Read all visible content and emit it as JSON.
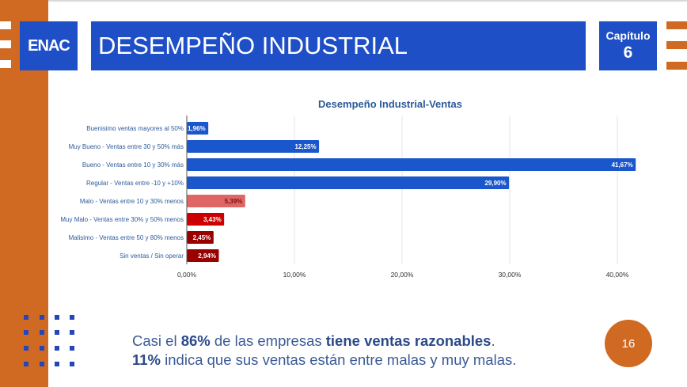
{
  "header": {
    "logo": "ENAC",
    "title": "DESEMPEÑO INDUSTRIAL",
    "chapter_label": "Capítulo",
    "chapter_number": "6"
  },
  "summary": {
    "line1_a": "Casi el ",
    "line1_b": "86%",
    "line1_c": " de las empresas ",
    "line1_d": "tiene ventas razonables",
    "line1_e": ".",
    "line2_a": "11%",
    "line2_b": " indica que sus ventas están entre malas y muy malas."
  },
  "page_number": "16",
  "colors": {
    "brand_blue": "#1e4fc7",
    "brand_orange": "#d06a22",
    "bar_blue": "#1a56cc",
    "bar_light_red": "#e06666",
    "bar_red": "#cc0000",
    "bar_dark_red": "#990000"
  },
  "chart_data": {
    "type": "bar",
    "orientation": "horizontal",
    "title": "Desempeño Industrial-Ventas",
    "xlabel": "",
    "ylabel": "",
    "xlim": [
      0,
      45
    ],
    "grid": true,
    "x_ticks": [
      0,
      10,
      20,
      30,
      40
    ],
    "x_tick_labels": [
      "0,00%",
      "10,00%",
      "20,00%",
      "30,00%",
      "40,00%"
    ],
    "categories": [
      "Buenisimo ventas mayores  al 50%",
      "Muy Bueno - Ventas entre 30 y 50% más",
      "Bueno - Ventas entre 10 y 30% más",
      "Regular - Ventas entre -10 y +10%",
      "Malo - Ventas entre 10 y 30% menos",
      "Muy Malo - Ventas entre 30% y 50% menos",
      "Malisimo - Ventas entre 50 y 80% menos",
      "Sin ventas / Sin operar"
    ],
    "values": [
      1.96,
      12.25,
      41.67,
      29.9,
      5.39,
      3.43,
      2.45,
      2.94
    ],
    "data_labels": [
      "1,96%",
      "12,25%",
      "41,67%",
      "29,90%",
      "5,39%",
      "3,43%",
      "2,45%",
      "2,94%"
    ],
    "bar_colors": [
      "#1a56cc",
      "#1a56cc",
      "#1a56cc",
      "#1a56cc",
      "#e06666",
      "#cc0000",
      "#990000",
      "#990000"
    ],
    "label_colors": [
      "#ffffff",
      "#ffffff",
      "#ffffff",
      "#ffffff",
      "#7a1010",
      "#ffffff",
      "#ffffff",
      "#ffffff"
    ]
  }
}
